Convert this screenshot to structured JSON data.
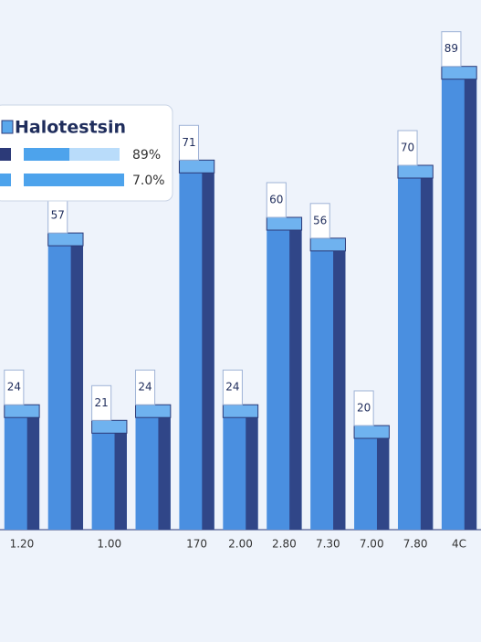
{
  "chart_data": {
    "type": "bar",
    "legend": {
      "title": "Halotestsin",
      "items": [
        "89%",
        "7.0%"
      ]
    },
    "categories": [
      "1.20",
      null,
      "1.00",
      null,
      "170",
      "2.00",
      "2.80",
      "7.30",
      "7.00",
      "7.80",
      "4C"
    ],
    "values": [
      24,
      57,
      21,
      24,
      71,
      24,
      60,
      56,
      20,
      70,
      89
    ],
    "color": "#4a8fe0",
    "color_dark": "#2c3a78",
    "ylim": [
      0,
      100
    ]
  }
}
